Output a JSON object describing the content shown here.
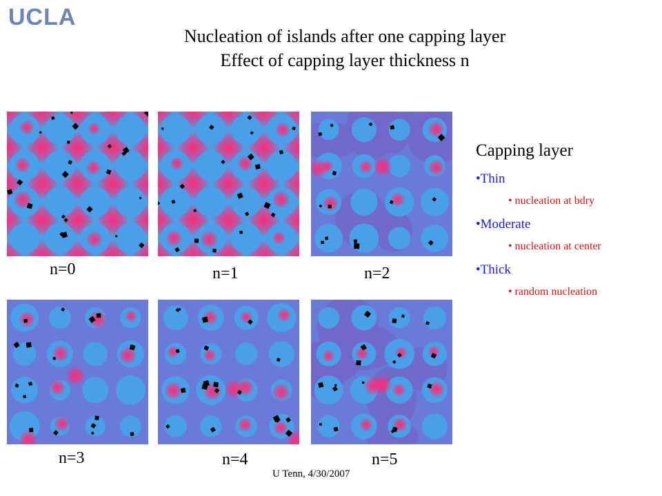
{
  "header": {
    "logo": "UCLA",
    "title_line1": "Nucleation of islands after one capping layer",
    "title_line2": "Effect of capping layer thickness n"
  },
  "panels": [
    {
      "label": "n=0",
      "style": "strain"
    },
    {
      "label": "n=1",
      "style": "strain"
    },
    {
      "label": "n=2",
      "style": "flat"
    },
    {
      "label": "n=3",
      "style": "mixed"
    },
    {
      "label": "n=4",
      "style": "mixed"
    },
    {
      "label": "n=5",
      "style": "flat"
    }
  ],
  "legend": {
    "heading": "Capping layer",
    "items": [
      {
        "label": "•Thin",
        "sub": "• nucleation at bdry"
      },
      {
        "label": "•Moderate",
        "sub": "• nucleation at center"
      },
      {
        "label": "•Thick",
        "sub": "• random nucleation"
      }
    ]
  },
  "footer": "U Tenn, 4/30/2007",
  "colors": {
    "blue": "#4aa0e8",
    "purple": "#6a7ad8",
    "pink": "#ff2a78",
    "text_blue": "#1a1ae0",
    "text_red": "#e01010"
  }
}
